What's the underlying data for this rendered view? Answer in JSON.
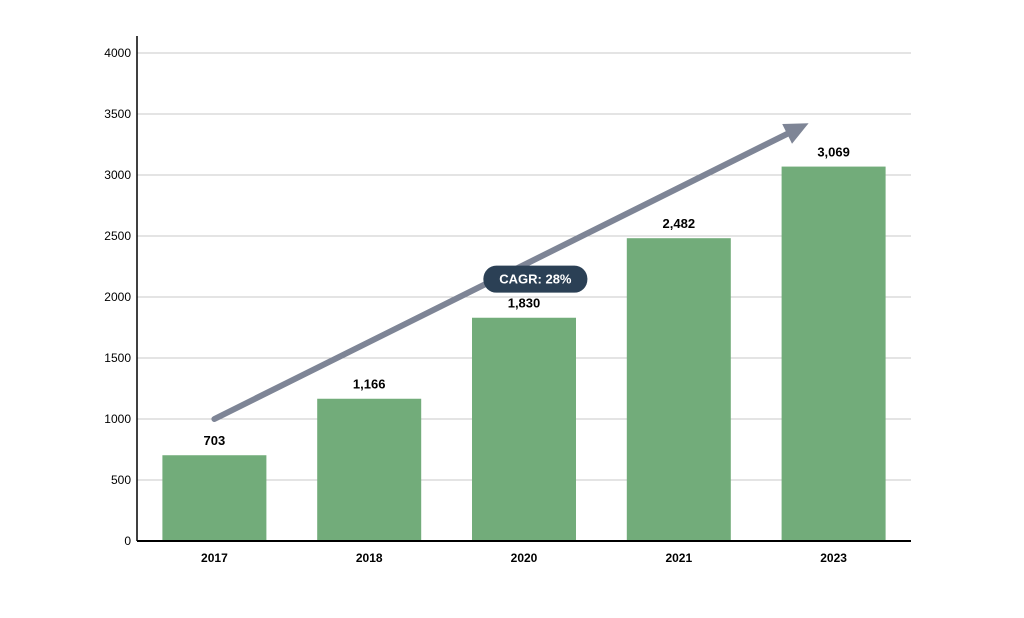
{
  "chart_data": {
    "type": "bar",
    "categories": [
      "2017",
      "2018",
      "2020",
      "2021",
      "2023"
    ],
    "values": [
      703,
      1166,
      1830,
      2482,
      3069
    ],
    "value_labels": [
      "703",
      "1,166",
      "1,830",
      "2,482",
      "3,069"
    ],
    "ylim": [
      0,
      4000
    ],
    "yticks": [
      0,
      500,
      1000,
      1500,
      2000,
      2500,
      3000,
      3500,
      4000
    ],
    "grid": true,
    "title": "",
    "xlabel": "",
    "ylabel": "",
    "annotation": "CAGR: 28%",
    "trend_arrow": {
      "from_value": 1000,
      "to_value": 3400
    },
    "colors": {
      "bar": "#72ac7a",
      "arrow": "#7e8596",
      "badge": "#2b4055",
      "grid": "#c8c8c8",
      "axis": "#000000"
    }
  }
}
